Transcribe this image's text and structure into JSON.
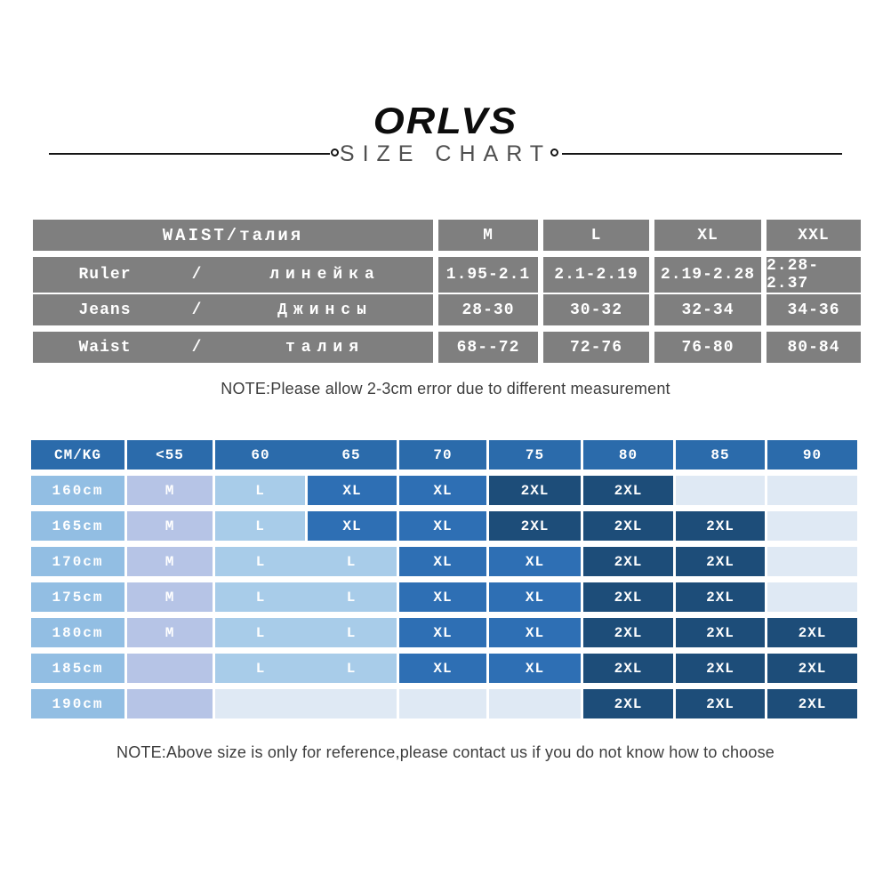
{
  "brand": {
    "logo": "ORLVS",
    "title": "SIZE CHART"
  },
  "colors": {
    "hdr": "#2b6bab",
    "md": "#2e6fb4",
    "dk": "#1d4d79",
    "lt": "#a8cce9",
    "lav": "#b6c4e6",
    "el": "#dfe9f4",
    "hcol": "#92bee3",
    "gray": "#7f7f7f"
  },
  "waist_table": {
    "header_row": {
      "label": "WAIST/талия",
      "sizes": [
        "M",
        "L",
        "XL",
        "XXL"
      ]
    },
    "rows": [
      {
        "en": "Ruler",
        "slash": "/",
        "ru": "линейка",
        "values": [
          "1.95-2.1",
          "2.1-2.19",
          "2.19-2.28",
          "2.28-2.37"
        ]
      },
      {
        "en": "Jeans",
        "slash": "/",
        "ru": "Джинсы",
        "values": [
          "28-30",
          "30-32",
          "32-34",
          "34-36"
        ]
      },
      {
        "en": "Waist",
        "slash": "/",
        "ru": "талия",
        "values": [
          "68--72",
          "72-76",
          "76-80",
          "80-84"
        ]
      }
    ]
  },
  "note_top": "NOTE:Please allow 2-3cm error due to different measurement",
  "note_bottom": "NOTE:Above size is only for reference,please contact us if you do not know how to choose",
  "size_matrix": {
    "header": {
      "cells": [
        {
          "labels": [
            "CM/KG"
          ]
        },
        {
          "labels": [
            "<55"
          ]
        },
        {
          "labels": [
            "60",
            "65"
          ],
          "span": 2
        },
        {
          "labels": [
            "70"
          ]
        },
        {
          "labels": [
            "75"
          ]
        },
        {
          "labels": [
            "80"
          ]
        },
        {
          "labels": [
            "85"
          ]
        },
        {
          "labels": [
            "90"
          ]
        }
      ]
    },
    "rows": [
      {
        "height": "160cm",
        "cells": [
          {
            "labels": [
              "M"
            ],
            "tone": "lav"
          },
          {
            "labels": [
              "L"
            ],
            "tone": "lt"
          },
          {
            "labels": [
              "XL"
            ],
            "tone": "md"
          },
          {
            "labels": [
              "XL"
            ],
            "tone": "md"
          },
          {
            "labels": [
              "2XL"
            ],
            "tone": "dk"
          },
          {
            "labels": [
              "2XL"
            ],
            "tone": "dk"
          },
          {
            "labels": [],
            "tone": "el"
          },
          {
            "labels": [],
            "tone": "el"
          }
        ]
      },
      {
        "height": "165cm",
        "cells": [
          {
            "labels": [
              "M"
            ],
            "tone": "lav"
          },
          {
            "labels": [
              "L"
            ],
            "tone": "lt"
          },
          {
            "labels": [
              "XL"
            ],
            "tone": "md"
          },
          {
            "labels": [
              "XL"
            ],
            "tone": "md"
          },
          {
            "labels": [
              "2XL"
            ],
            "tone": "dk"
          },
          {
            "labels": [
              "2XL"
            ],
            "tone": "dk"
          },
          {
            "labels": [
              "2XL"
            ],
            "tone": "dk"
          },
          {
            "labels": [],
            "tone": "el"
          }
        ]
      },
      {
        "height": "170cm",
        "cells": [
          {
            "labels": [
              "M"
            ],
            "tone": "lav"
          },
          {
            "labels": [
              "L",
              "L"
            ],
            "tone": "lt",
            "span": 2
          },
          {
            "labels": [
              "XL"
            ],
            "tone": "md"
          },
          {
            "labels": [
              "XL"
            ],
            "tone": "md"
          },
          {
            "labels": [
              "2XL"
            ],
            "tone": "dk"
          },
          {
            "labels": [
              "2XL"
            ],
            "tone": "dk"
          },
          {
            "labels": [],
            "tone": "el"
          }
        ]
      },
      {
        "height": "175cm",
        "cells": [
          {
            "labels": [
              "M"
            ],
            "tone": "lav"
          },
          {
            "labels": [
              "L",
              "L"
            ],
            "tone": "lt",
            "span": 2
          },
          {
            "labels": [
              "XL"
            ],
            "tone": "md"
          },
          {
            "labels": [
              "XL"
            ],
            "tone": "md"
          },
          {
            "labels": [
              "2XL"
            ],
            "tone": "dk"
          },
          {
            "labels": [
              "2XL"
            ],
            "tone": "dk"
          },
          {
            "labels": [],
            "tone": "el"
          }
        ]
      },
      {
        "height": "180cm",
        "cells": [
          {
            "labels": [
              "M"
            ],
            "tone": "lav"
          },
          {
            "labels": [
              "L",
              "L"
            ],
            "tone": "lt",
            "span": 2
          },
          {
            "labels": [
              "XL"
            ],
            "tone": "md"
          },
          {
            "labels": [
              "XL"
            ],
            "tone": "md"
          },
          {
            "labels": [
              "2XL"
            ],
            "tone": "dk"
          },
          {
            "labels": [
              "2XL"
            ],
            "tone": "dk"
          },
          {
            "labels": [
              "2XL"
            ],
            "tone": "dk"
          }
        ]
      },
      {
        "height": "185cm",
        "cells": [
          {
            "labels": [],
            "tone": "lav"
          },
          {
            "labels": [
              "L",
              "L"
            ],
            "tone": "lt",
            "span": 2
          },
          {
            "labels": [
              "XL"
            ],
            "tone": "md"
          },
          {
            "labels": [
              "XL"
            ],
            "tone": "md"
          },
          {
            "labels": [
              "2XL"
            ],
            "tone": "dk"
          },
          {
            "labels": [
              "2XL"
            ],
            "tone": "dk"
          },
          {
            "labels": [
              "2XL"
            ],
            "tone": "dk"
          }
        ]
      },
      {
        "height": "190cm",
        "cells": [
          {
            "labels": [],
            "tone": "lav"
          },
          {
            "labels": [],
            "tone": "el",
            "span": 2
          },
          {
            "labels": [],
            "tone": "el"
          },
          {
            "labels": [],
            "tone": "el"
          },
          {
            "labels": [
              "2XL"
            ],
            "tone": "dk"
          },
          {
            "labels": [
              "2XL"
            ],
            "tone": "dk"
          },
          {
            "labels": [
              "2XL"
            ],
            "tone": "dk"
          }
        ]
      }
    ]
  },
  "chart_data": [
    {
      "type": "table",
      "title": "WAIST/талия",
      "columns": [
        "",
        "M",
        "L",
        "XL",
        "XXL"
      ],
      "rows": [
        [
          "Ruler / линейка",
          "1.95-2.1",
          "2.1-2.19",
          "2.19-2.28",
          "2.28-2.37"
        ],
        [
          "Jeans / Джинсы",
          "28-30",
          "30-32",
          "32-34",
          "34-36"
        ],
        [
          "Waist / талия",
          "68--72",
          "72-76",
          "76-80",
          "80-84"
        ]
      ]
    },
    {
      "type": "table",
      "title": "CM/KG size matrix",
      "columns": [
        "CM/KG",
        "<55",
        "60",
        "65",
        "70",
        "75",
        "80",
        "85",
        "90"
      ],
      "rows": [
        [
          "160cm",
          "M",
          "L",
          "XL",
          "XL",
          "2XL",
          "2XL",
          "",
          ""
        ],
        [
          "165cm",
          "M",
          "L",
          "XL",
          "XL",
          "2XL",
          "2XL",
          "2XL",
          ""
        ],
        [
          "170cm",
          "M",
          "L",
          "L",
          "XL",
          "XL",
          "2XL",
          "2XL",
          ""
        ],
        [
          "175cm",
          "M",
          "L",
          "L",
          "XL",
          "XL",
          "2XL",
          "2XL",
          ""
        ],
        [
          "180cm",
          "M",
          "L",
          "L",
          "XL",
          "XL",
          "2XL",
          "2XL",
          "2XL"
        ],
        [
          "185cm",
          "",
          "L",
          "L",
          "XL",
          "XL",
          "2XL",
          "2XL",
          "2XL"
        ],
        [
          "190cm",
          "",
          "",
          "",
          "",
          "",
          "2XL",
          "2XL",
          "2XL"
        ]
      ]
    }
  ]
}
